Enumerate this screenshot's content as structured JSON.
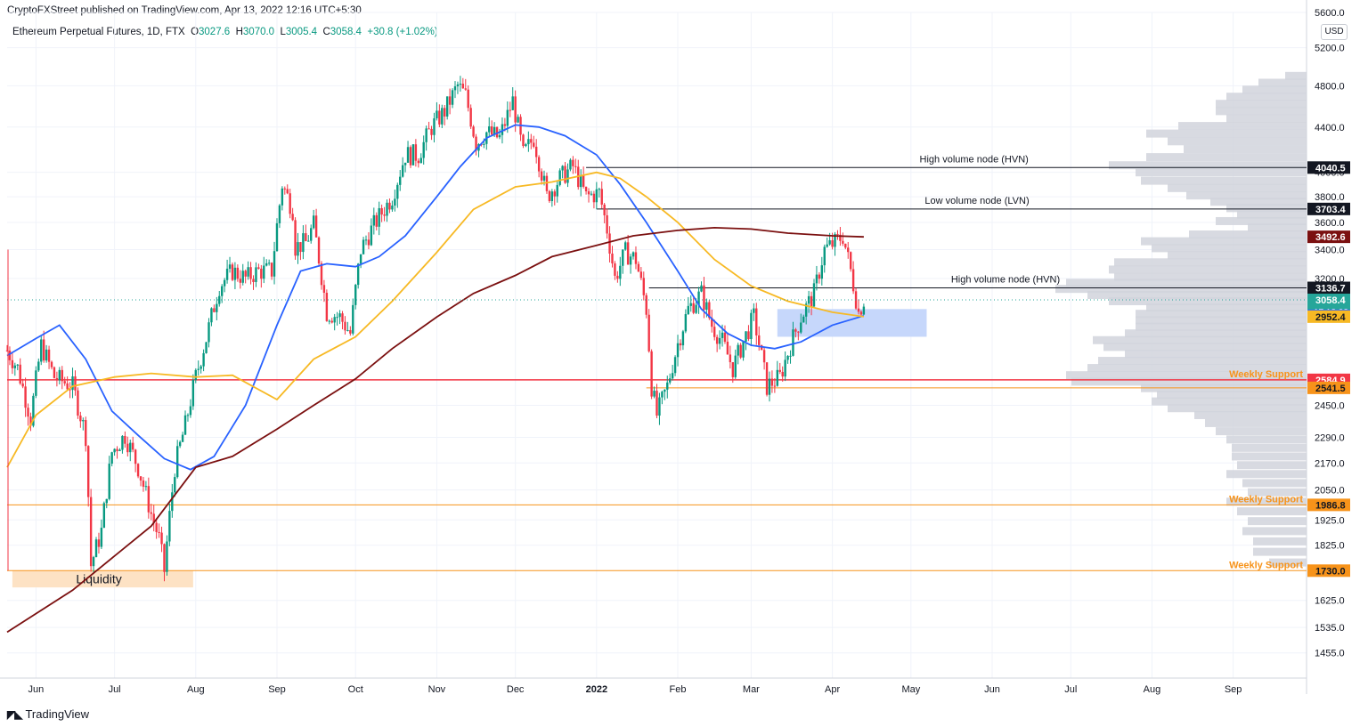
{
  "header": {
    "publisher_line": "CryptoFXStreet published on TradingView.com, Apr 13, 2022 12:16 UTC+5:30",
    "symbol": "Ethereum Perpetual Futures, 1D, FTX",
    "o_label": "O",
    "o_value": "3027.6",
    "h_label": "H",
    "h_value": "3070.0",
    "l_label": "L",
    "l_value": "3005.4",
    "c_label": "C",
    "c_value": "3058.4",
    "change": "+30.8 (+1.02%)"
  },
  "currency_label": "USD",
  "brand": "TradingView",
  "colors": {
    "up": "#089981",
    "down": "#f23645",
    "sma50": "#2962ff",
    "sma100": "#f7b924",
    "sma200": "#7b1010",
    "weekly_support": "#f7931a",
    "red_support": "#f23645",
    "volume_profile": "#d1d4dc",
    "liquidity_zone": "#fde2c4",
    "blue_zone": "#c6d7fb"
  },
  "chart_data": {
    "type": "line",
    "title": "",
    "xlabel": "",
    "ylabel": "",
    "y_scale": "log",
    "ylim": [
      1380,
      5600
    ],
    "x_range": [
      "2021-05-21",
      "2022-09-29"
    ],
    "grid": true,
    "x_tick_labels": [
      "Jun",
      "Jul",
      "Aug",
      "Sep",
      "Oct",
      "Nov",
      "Dec",
      "2022",
      "Feb",
      "Mar",
      "Apr",
      "May",
      "Jun",
      "Jul",
      "Aug",
      "Sep"
    ],
    "x_tick_dates": [
      "2021-06-01",
      "2021-07-01",
      "2021-08-01",
      "2021-09-01",
      "2021-10-01",
      "2021-11-01",
      "2021-12-01",
      "2022-01-01",
      "2022-02-01",
      "2022-03-01",
      "2022-04-01",
      "2022-05-01",
      "2022-06-01",
      "2022-07-01",
      "2022-08-01",
      "2022-09-01"
    ],
    "y_tick_labels": [
      "5600.0",
      "5200.0",
      "4800.0",
      "4400.0",
      "4000.0",
      "3800.0",
      "3600.0",
      "3400.0",
      "3200.0",
      "2450.0",
      "2290.0",
      "2170.0",
      "2050.0",
      "1925.0",
      "1825.0",
      "1625.0",
      "1535.0",
      "1455.0"
    ],
    "price_path": [
      [
        "2021-05-21",
        2750
      ],
      [
        "2021-05-25",
        2650
      ],
      [
        "2021-05-30",
        2380
      ],
      [
        "2021-06-03",
        2780
      ],
      [
        "2021-06-08",
        2600
      ],
      [
        "2021-06-15",
        2550
      ],
      [
        "2021-06-20",
        2300
      ],
      [
        "2021-06-22",
        1750
      ],
      [
        "2021-06-26",
        1880
      ],
      [
        "2021-06-30",
        2220
      ],
      [
        "2021-07-05",
        2300
      ],
      [
        "2021-07-10",
        2150
      ],
      [
        "2021-07-15",
        1950
      ],
      [
        "2021-07-18",
        1850
      ],
      [
        "2021-07-20",
        1730
      ],
      [
        "2021-07-24",
        2150
      ],
      [
        "2021-07-28",
        2350
      ],
      [
        "2021-08-01",
        2600
      ],
      [
        "2021-08-05",
        2820
      ],
      [
        "2021-08-10",
        3150
      ],
      [
        "2021-08-15",
        3250
      ],
      [
        "2021-08-20",
        3200
      ],
      [
        "2021-08-25",
        3250
      ],
      [
        "2021-08-30",
        3250
      ],
      [
        "2021-09-03",
        3900
      ],
      [
        "2021-09-07",
        3700
      ],
      [
        "2021-09-08",
        3420
      ],
      [
        "2021-09-12",
        3450
      ],
      [
        "2021-09-15",
        3580
      ],
      [
        "2021-09-20",
        2980
      ],
      [
        "2021-09-25",
        2950
      ],
      [
        "2021-09-29",
        2850
      ],
      [
        "2021-10-03",
        3400
      ],
      [
        "2021-10-08",
        3580
      ],
      [
        "2021-10-15",
        3800
      ],
      [
        "2021-10-20",
        4150
      ],
      [
        "2021-10-25",
        4150
      ],
      [
        "2021-10-30",
        4400
      ],
      [
        "2021-11-04",
        4550
      ],
      [
        "2021-11-09",
        4800
      ],
      [
        "2021-11-12",
        4700
      ],
      [
        "2021-11-16",
        4250
      ],
      [
        "2021-11-20",
        4350
      ],
      [
        "2021-11-25",
        4300
      ],
      [
        "2021-11-30",
        4650
      ],
      [
        "2021-12-04",
        4150
      ],
      [
        "2021-12-08",
        4300
      ],
      [
        "2021-12-13",
        3800
      ],
      [
        "2021-12-18",
        3950
      ],
      [
        "2021-12-23",
        4050
      ],
      [
        "2021-12-28",
        3800
      ],
      [
        "2022-01-02",
        3830
      ],
      [
        "2022-01-05",
        3550
      ],
      [
        "2022-01-08",
        3200
      ],
      [
        "2022-01-12",
        3380
      ],
      [
        "2022-01-16",
        3330
      ],
      [
        "2022-01-20",
        3000
      ],
      [
        "2022-01-22",
        2550
      ],
      [
        "2022-01-24",
        2400
      ],
      [
        "2022-01-28",
        2550
      ],
      [
        "2022-02-01",
        2790
      ],
      [
        "2022-02-05",
        3000
      ],
      [
        "2022-02-10",
        3100
      ],
      [
        "2022-02-14",
        2900
      ],
      [
        "2022-02-18",
        2800
      ],
      [
        "2022-02-22",
        2650
      ],
      [
        "2022-02-26",
        2800
      ],
      [
        "2022-03-02",
        2950
      ],
      [
        "2022-03-07",
        2550
      ],
      [
        "2022-03-12",
        2600
      ],
      [
        "2022-03-16",
        2780
      ],
      [
        "2022-03-20",
        2950
      ],
      [
        "2022-03-25",
        3100
      ],
      [
        "2022-03-29",
        3400
      ],
      [
        "2022-04-02",
        3450
      ],
      [
        "2022-04-05",
        3500
      ],
      [
        "2022-04-08",
        3250
      ],
      [
        "2022-04-11",
        2980
      ],
      [
        "2022-04-13",
        3058
      ]
    ],
    "series": [
      {
        "name": "",
        "color": "#2962ff",
        "points": [
          [
            "2021-05-21",
            2720
          ],
          [
            "2021-06-01",
            2820
          ],
          [
            "2021-06-10",
            2900
          ],
          [
            "2021-06-20",
            2700
          ],
          [
            "2021-06-30",
            2420
          ],
          [
            "2021-07-10",
            2300
          ],
          [
            "2021-07-20",
            2190
          ],
          [
            "2021-07-30",
            2140
          ],
          [
            "2021-08-08",
            2200
          ],
          [
            "2021-08-20",
            2450
          ],
          [
            "2021-09-01",
            2900
          ],
          [
            "2021-09-10",
            3250
          ],
          [
            "2021-09-20",
            3300
          ],
          [
            "2021-10-01",
            3280
          ],
          [
            "2021-10-10",
            3350
          ],
          [
            "2021-10-20",
            3500
          ],
          [
            "2021-11-01",
            3800
          ],
          [
            "2021-11-10",
            4050
          ],
          [
            "2021-11-20",
            4300
          ],
          [
            "2021-12-01",
            4420
          ],
          [
            "2021-12-10",
            4400
          ],
          [
            "2021-12-20",
            4320
          ],
          [
            "2022-01-01",
            4150
          ],
          [
            "2022-01-10",
            3900
          ],
          [
            "2022-01-20",
            3600
          ],
          [
            "2022-02-01",
            3250
          ],
          [
            "2022-02-10",
            3000
          ],
          [
            "2022-02-20",
            2850
          ],
          [
            "2022-03-01",
            2780
          ],
          [
            "2022-03-10",
            2760
          ],
          [
            "2022-03-20",
            2800
          ],
          [
            "2022-04-01",
            2900
          ],
          [
            "2022-04-13",
            2958
          ]
        ]
      },
      {
        "name": "",
        "color": "#f7b924",
        "points": [
          [
            "2021-05-21",
            2150
          ],
          [
            "2021-06-01",
            2400
          ],
          [
            "2021-06-15",
            2550
          ],
          [
            "2021-07-01",
            2600
          ],
          [
            "2021-07-15",
            2620
          ],
          [
            "2021-08-01",
            2600
          ],
          [
            "2021-08-15",
            2610
          ],
          [
            "2021-09-01",
            2480
          ],
          [
            "2021-09-15",
            2700
          ],
          [
            "2021-10-01",
            2830
          ],
          [
            "2021-10-15",
            3050
          ],
          [
            "2021-11-01",
            3380
          ],
          [
            "2021-11-15",
            3700
          ],
          [
            "2021-12-01",
            3880
          ],
          [
            "2021-12-15",
            3920
          ],
          [
            "2022-01-01",
            4000
          ],
          [
            "2022-01-10",
            3950
          ],
          [
            "2022-01-20",
            3800
          ],
          [
            "2022-02-01",
            3600
          ],
          [
            "2022-02-15",
            3330
          ],
          [
            "2022-03-01",
            3150
          ],
          [
            "2022-03-15",
            3050
          ],
          [
            "2022-04-01",
            2980
          ],
          [
            "2022-04-13",
            2952
          ]
        ]
      },
      {
        "name": "",
        "color": "#7b1010",
        "points": [
          [
            "2021-05-21",
            1520
          ],
          [
            "2021-06-15",
            1660
          ],
          [
            "2021-07-15",
            1900
          ],
          [
            "2021-08-01",
            2150
          ],
          [
            "2021-08-15",
            2200
          ],
          [
            "2021-09-01",
            2330
          ],
          [
            "2021-09-15",
            2450
          ],
          [
            "2021-10-01",
            2590
          ],
          [
            "2021-10-15",
            2760
          ],
          [
            "2021-11-01",
            2950
          ],
          [
            "2021-11-15",
            3100
          ],
          [
            "2021-12-01",
            3220
          ],
          [
            "2021-12-15",
            3350
          ],
          [
            "2022-01-01",
            3430
          ],
          [
            "2022-01-15",
            3500
          ],
          [
            "2022-02-01",
            3540
          ],
          [
            "2022-02-15",
            3560
          ],
          [
            "2022-03-01",
            3550
          ],
          [
            "2022-03-15",
            3520
          ],
          [
            "2022-04-01",
            3500
          ],
          [
            "2022-04-13",
            3492
          ]
        ]
      }
    ],
    "horizontal_lines": [
      {
        "value": 4040.5,
        "price_label": "4040.5",
        "annotation": "High volume node (HVN)",
        "style": "black",
        "from": "2021-12-28"
      },
      {
        "value": 3703.4,
        "price_label": "3703.4",
        "annotation": "Low volume node (LVN)",
        "style": "black",
        "from": "2022-01-01"
      },
      {
        "value": 3136.7,
        "price_label": "3136.7",
        "annotation": "High volume node (HVN)",
        "style": "black",
        "from": "2022-01-21"
      },
      {
        "value": 2584.9,
        "price_label": "2584.9",
        "annotation": "Weekly Support",
        "style": "red",
        "from": "2021-05-21"
      },
      {
        "value": 2541.5,
        "price_label": "2541.5",
        "annotation": "",
        "style": "orange-thin",
        "from": "2022-01-20"
      },
      {
        "value": 1986.8,
        "price_label": "1986.8",
        "annotation": "Weekly Support",
        "style": "orange",
        "from": "2021-05-21"
      },
      {
        "value": 1730.0,
        "price_label": "1730.0",
        "annotation": "Weekly Support",
        "style": "orange",
        "from": "2021-05-21"
      }
    ],
    "price_tags": [
      {
        "value": 3492.6,
        "label": "3492.6",
        "bg": "#7b1010",
        "fg": "#ffffff"
      },
      {
        "value": 3058.4,
        "label": "3058.4",
        "sub": "17:13:03",
        "bg": "#26a69a",
        "fg": "#ffffff"
      },
      {
        "value": 2958.0,
        "label": "2958.0",
        "bg": "#2962ff",
        "fg": "#ffffff"
      },
      {
        "value": 2952.4,
        "label": "2952.4",
        "bg": "#f7b924",
        "fg": "#131722"
      }
    ],
    "zones": [
      {
        "label": "Liquidity",
        "from": "2021-05-23",
        "to": "2021-07-31",
        "low": 1670,
        "high": 1730,
        "color": "#fde2c4"
      },
      {
        "label": "",
        "from": "2022-03-11",
        "to": "2022-05-07",
        "low": 2830,
        "high": 3000,
        "color": "#c6d7fb"
      }
    ],
    "volume_profile": [
      [
        4900,
        0.08
      ],
      [
        4830,
        0.18
      ],
      [
        4760,
        0.24
      ],
      [
        4690,
        0.3
      ],
      [
        4620,
        0.34
      ],
      [
        4550,
        0.34
      ],
      [
        4480,
        0.3
      ],
      [
        4410,
        0.48
      ],
      [
        4340,
        0.6
      ],
      [
        4270,
        0.52
      ],
      [
        4200,
        0.46
      ],
      [
        4130,
        0.6
      ],
      [
        4060,
        0.74
      ],
      [
        4000,
        0.64
      ],
      [
        3930,
        0.62
      ],
      [
        3870,
        0.52
      ],
      [
        3810,
        0.45
      ],
      [
        3760,
        0.36
      ],
      [
        3710,
        0.3
      ],
      [
        3660,
        0.26
      ],
      [
        3610,
        0.34
      ],
      [
        3560,
        0.22
      ],
      [
        3510,
        0.44
      ],
      [
        3460,
        0.62
      ],
      [
        3410,
        0.58
      ],
      [
        3360,
        0.52
      ],
      [
        3310,
        0.72
      ],
      [
        3260,
        0.74
      ],
      [
        3210,
        0.72
      ],
      [
        3170,
        0.9
      ],
      [
        3130,
        0.94
      ],
      [
        3090,
        0.82
      ],
      [
        3050,
        0.74
      ],
      [
        3010,
        0.6
      ],
      [
        2970,
        0.64
      ],
      [
        2930,
        0.64
      ],
      [
        2890,
        0.64
      ],
      [
        2850,
        0.68
      ],
      [
        2810,
        0.8
      ],
      [
        2770,
        0.76
      ],
      [
        2730,
        0.68
      ],
      [
        2690,
        0.78
      ],
      [
        2650,
        0.82
      ],
      [
        2610,
        0.9
      ],
      [
        2575,
        0.88
      ],
      [
        2540,
        0.62
      ],
      [
        2505,
        0.56
      ],
      [
        2470,
        0.58
      ],
      [
        2435,
        0.52
      ],
      [
        2400,
        0.42
      ],
      [
        2360,
        0.38
      ],
      [
        2320,
        0.34
      ],
      [
        2280,
        0.3
      ],
      [
        2240,
        0.28
      ],
      [
        2200,
        0.28
      ],
      [
        2160,
        0.26
      ],
      [
        2120,
        0.3
      ],
      [
        2080,
        0.24
      ],
      [
        2040,
        0.22
      ],
      [
        2000,
        0.3
      ],
      [
        1960,
        0.26
      ],
      [
        1920,
        0.22
      ],
      [
        1880,
        0.24
      ],
      [
        1840,
        0.2
      ],
      [
        1800,
        0.2
      ],
      [
        1760,
        0.14
      ]
    ]
  }
}
